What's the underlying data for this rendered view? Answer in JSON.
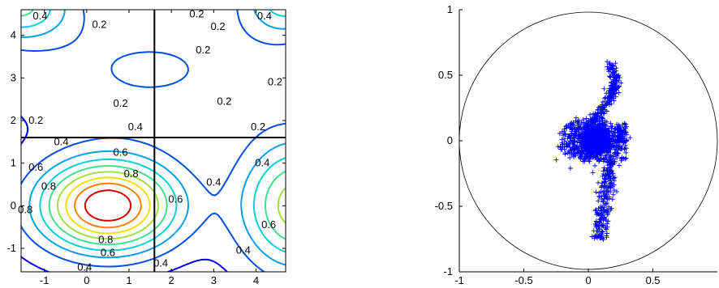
{
  "chart_data": [
    {
      "type": "contour",
      "title": "",
      "xlabel": "",
      "ylabel": "",
      "xlim": [
        -1.55,
        4.7
      ],
      "ylim": [
        -1.55,
        4.6
      ],
      "xticks": [
        -1,
        0,
        1,
        2,
        3,
        4
      ],
      "yticks": [
        -1,
        0,
        1,
        2,
        3,
        4
      ],
      "xtick_labels": [
        "-1",
        "0",
        "1",
        "2",
        "3",
        "4"
      ],
      "ytick_labels": [
        "-1",
        "0",
        "1",
        "2",
        "3",
        "4"
      ],
      "levels": [
        0.1,
        0.2,
        0.3,
        0.4,
        0.5,
        0.6,
        0.7,
        0.8,
        0.9
      ],
      "level_colors": {
        "0.1": "#0000ff",
        "0.2": "#0050e0",
        "0.3": "#00a0e6",
        "0.4": "#00d2d2",
        "0.5": "#40e08c",
        "0.6": "#a0e040",
        "0.7": "#f0e000",
        "0.8": "#ff8000",
        "0.9": "#d00000"
      },
      "crosshair": {
        "x": 1.6,
        "y": 1.6
      },
      "contour_labels": [
        {
          "text": "0.4",
          "x": -1.1,
          "y": 4.45
        },
        {
          "text": "0.2",
          "x": 0.3,
          "y": 4.25
        },
        {
          "text": "0.2",
          "x": 2.6,
          "y": 4.5
        },
        {
          "text": "0.2",
          "x": 3.1,
          "y": 4.2
        },
        {
          "text": "0.4",
          "x": 4.2,
          "y": 4.45
        },
        {
          "text": "0.2",
          "x": 2.75,
          "y": 3.65
        },
        {
          "text": "0.2",
          "x": 0.8,
          "y": 2.4
        },
        {
          "text": "0.2",
          "x": 3.25,
          "y": 2.45
        },
        {
          "text": "0.2",
          "x": 4.45,
          "y": 2.9
        },
        {
          "text": "0.2",
          "x": -1.2,
          "y": 2.0
        },
        {
          "text": "0.4",
          "x": 1.15,
          "y": 1.85
        },
        {
          "text": "0.2",
          "x": 4.05,
          "y": 1.85
        },
        {
          "text": "0.4",
          "x": -0.6,
          "y": 1.5
        },
        {
          "text": "0.6",
          "x": 0.8,
          "y": 1.25
        },
        {
          "text": "0.4",
          "x": 4.15,
          "y": 1.0
        },
        {
          "text": "0.6",
          "x": -1.2,
          "y": 0.9
        },
        {
          "text": "0.8",
          "x": 1.05,
          "y": 0.75
        },
        {
          "text": "0.8",
          "x": -0.9,
          "y": 0.45
        },
        {
          "text": "0.4",
          "x": 3.0,
          "y": 0.55
        },
        {
          "text": "0.6",
          "x": 2.1,
          "y": 0.15
        },
        {
          "text": "0.8",
          "x": -1.45,
          "y": -0.1
        },
        {
          "text": "0.6",
          "x": 4.3,
          "y": -0.45
        },
        {
          "text": "0.8",
          "x": 0.45,
          "y": -0.8
        },
        {
          "text": "0.6",
          "x": 0.5,
          "y": -1.1
        },
        {
          "text": "0.4",
          "x": 3.7,
          "y": -1.05
        },
        {
          "text": "0.4",
          "x": -0.05,
          "y": -1.45
        },
        {
          "text": "0.4",
          "x": 1.75,
          "y": -1.35
        }
      ]
    },
    {
      "type": "scatter",
      "title": "",
      "xlabel": "",
      "ylabel": "",
      "xlim": [
        -1,
        1
      ],
      "ylim": [
        -1,
        1
      ],
      "xticks": [
        -1,
        -0.5,
        0,
        0.5
      ],
      "yticks": [
        -1,
        -0.5,
        0,
        0.5,
        1
      ],
      "xtick_labels": [
        "-1",
        "-0.5",
        "0",
        "0.5"
      ],
      "ytick_labels": [
        "-1",
        "-0.5",
        "0",
        "0.5",
        "1"
      ],
      "marker": "+",
      "marker_color": "#0000ff",
      "unit_circle": true,
      "points_description": "dense cluster near (0.05, 0) with two arms extending to roughly (0.02, 0.6) and (0.1, -0.78)"
    }
  ]
}
